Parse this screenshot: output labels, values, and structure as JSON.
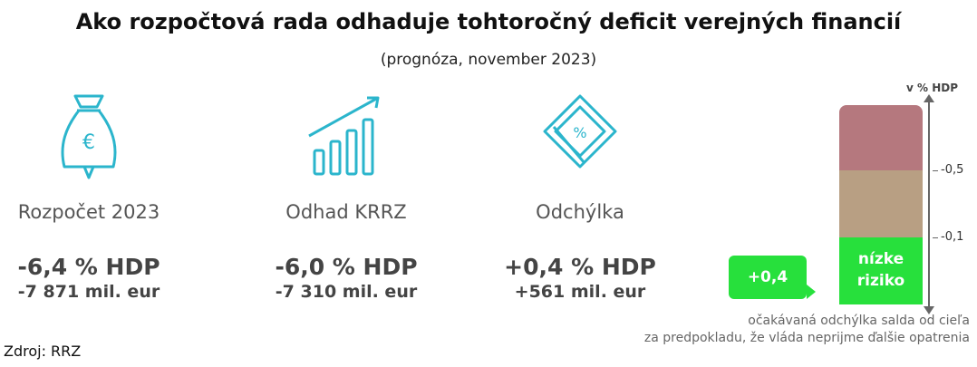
{
  "header": {
    "title": "Ako rozpočtová rada odhaduje tohtoročný deficit verejných financií",
    "subtitle": "(prognóza, november 2023)"
  },
  "columns": [
    {
      "label": "Rozpočet 2023",
      "pct": "-6,4 % HDP",
      "eur": "-7 871 mil. eur",
      "icon": "money-bag-euro-icon"
    },
    {
      "label": "Odhad KRRZ",
      "pct": "-6,0 % HDP",
      "eur": "-7 310 mil. eur",
      "icon": "bar-chart-growth-icon"
    },
    {
      "label": "Odchýlka",
      "pct": "+0,4 % HDP",
      "eur": "+561 mil. eur",
      "icon": "percent-tag-icon"
    }
  ],
  "risk_scale": {
    "unit": "v % HDP",
    "ticks": [
      "-0,5",
      "-0,1"
    ],
    "green_label_line1": "nízke",
    "green_label_line2": "riziko",
    "callout": "+0,4",
    "note_line1": "očakávaná odchýlka salda od cieľa",
    "note_line2": "za predpokladu, že vláda neprijme ďalšie opatrenia",
    "colors": {
      "high": "#b5787e",
      "medium": "#b89f83",
      "low": "#27e03c",
      "icon": "#2bb5cc"
    }
  },
  "footer": {
    "source": "Zdroj: RRZ"
  }
}
